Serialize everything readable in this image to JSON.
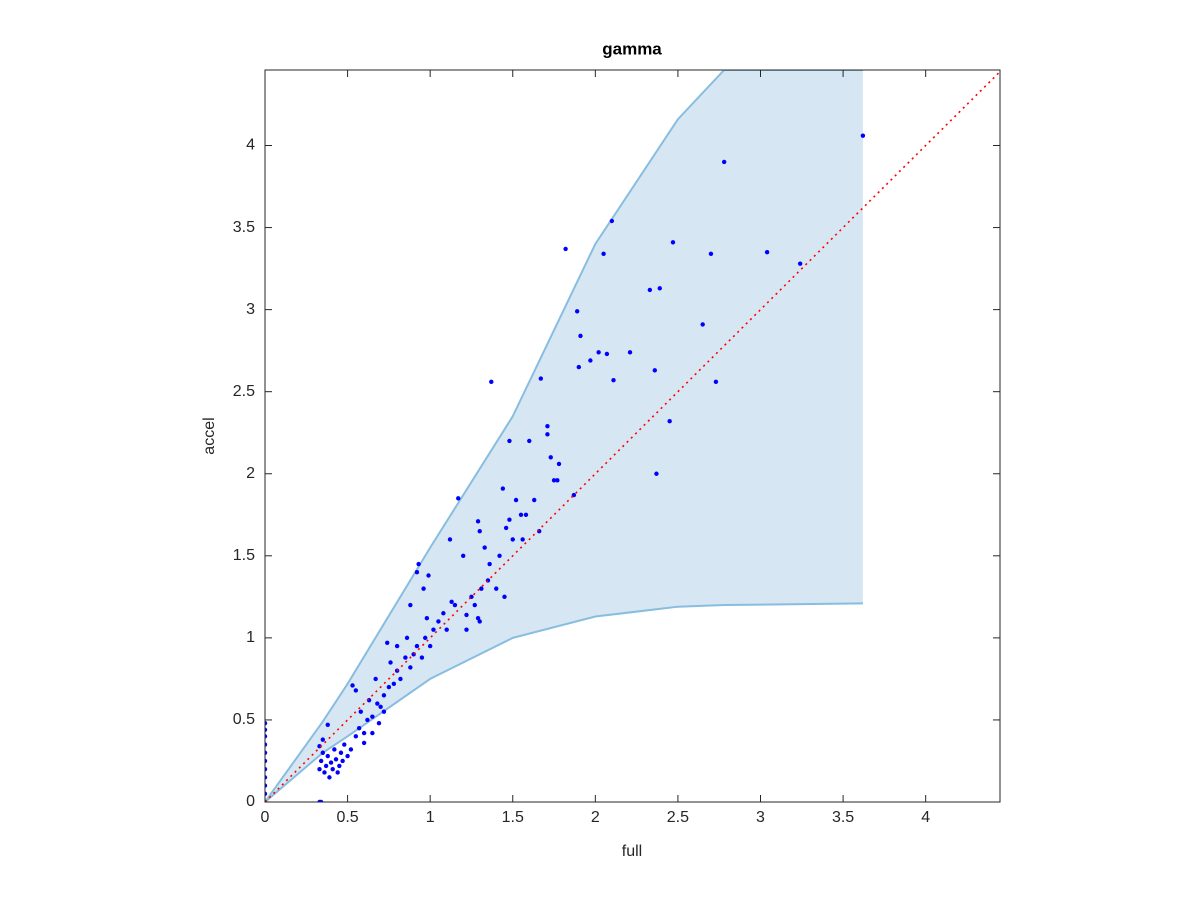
{
  "chart_data": {
    "type": "scatter",
    "title": "gamma",
    "xlabel": "full",
    "ylabel": "accel",
    "xlim": [
      0,
      4.45
    ],
    "ylim": [
      0,
      4.46
    ],
    "xticks": [
      0,
      0.5,
      1,
      1.5,
      2,
      2.5,
      3,
      3.5,
      4
    ],
    "yticks": [
      0,
      0.5,
      1,
      1.5,
      2,
      2.5,
      3,
      3.5,
      4
    ],
    "color": "#0000ff",
    "x": [
      3.62,
      2.78,
      2.1,
      1.82,
      2.05,
      2.47,
      2.7,
      3.04,
      3.24,
      2.33,
      2.39,
      1.89,
      1.91,
      2.65,
      1.97,
      2.02,
      2.07,
      2.11,
      2.21,
      1.9,
      2.36,
      2.73,
      1.37,
      1.67,
      2.45,
      1.71,
      1.71,
      1.48,
      1.6,
      1.73,
      1.75,
      1.77,
      1.78,
      2.37,
      1.17,
      1.44,
      1.52,
      1.63,
      1.55,
      1.87,
      1.29,
      1.3,
      1.48,
      1.46,
      1.58,
      1.66,
      1.56,
      1.12,
      0.93,
      0.92,
      0.99,
      1.2,
      1.36,
      1.4,
      1.31,
      1.27,
      1.29,
      1.22,
      1.13,
      1.05,
      0.33,
      0.34,
      0.35,
      0.36,
      0.37,
      0.38,
      0.39,
      0.4,
      0.41,
      0.42,
      0.43,
      0.44,
      0.45,
      0.46,
      0.47,
      0.48,
      0.5,
      0.52,
      0.33,
      0.35,
      0.38,
      0.33,
      0.34,
      0.55,
      0.57,
      0.6,
      0.62,
      0.58,
      0.65,
      0.68,
      0.7,
      0.72,
      0.63,
      0.75,
      0.78,
      0.8,
      0.82,
      0.76,
      0.85,
      0.88,
      0.9,
      0.92,
      0.95,
      0.97,
      1.0,
      1.02,
      0.98,
      0.86,
      0.8,
      0.74,
      0.67,
      0.53,
      0.55,
      0.72,
      0.69,
      0.6,
      0.65,
      1.08,
      1.1,
      1.15,
      0.96,
      0.88,
      1.25,
      1.35,
      1.42,
      1.33,
      1.5,
      1.22,
      1.3,
      1.45,
      0,
      0,
      0,
      0,
      0,
      0,
      0,
      0,
      0,
      0,
      0
    ],
    "values": [
      4.06,
      3.9,
      3.54,
      3.37,
      3.34,
      3.41,
      3.34,
      3.35,
      3.28,
      3.12,
      3.13,
      2.99,
      2.84,
      2.91,
      2.69,
      2.74,
      2.73,
      2.57,
      2.74,
      2.65,
      2.63,
      2.56,
      2.56,
      2.58,
      2.32,
      2.29,
      2.24,
      2.2,
      2.2,
      2.1,
      1.96,
      1.96,
      2.06,
      2.0,
      1.85,
      1.91,
      1.84,
      1.84,
      1.75,
      1.87,
      1.71,
      1.65,
      1.72,
      1.67,
      1.75,
      1.65,
      1.6,
      1.6,
      1.45,
      1.4,
      1.38,
      1.5,
      1.45,
      1.3,
      1.3,
      1.2,
      1.12,
      1.14,
      1.22,
      1.1,
      0.2,
      0.25,
      0.3,
      0.18,
      0.22,
      0.28,
      0.15,
      0.24,
      0.2,
      0.32,
      0.26,
      0.18,
      0.22,
      0.3,
      0.25,
      0.35,
      0.28,
      0.32,
      0.34,
      0.38,
      0.47,
      0.0,
      0.0,
      0.4,
      0.45,
      0.42,
      0.5,
      0.55,
      0.52,
      0.6,
      0.58,
      0.65,
      0.62,
      0.7,
      0.72,
      0.8,
      0.75,
      0.85,
      0.88,
      0.82,
      0.9,
      0.95,
      0.88,
      1.0,
      0.95,
      1.05,
      1.12,
      1.0,
      0.95,
      0.97,
      0.75,
      0.71,
      0.68,
      0.55,
      0.48,
      0.36,
      0.42,
      1.15,
      1.05,
      1.2,
      1.3,
      1.2,
      1.25,
      1.35,
      1.5,
      1.55,
      1.6,
      1.05,
      1.1,
      1.25,
      0.05,
      0.1,
      0.15,
      0.2,
      0.25,
      0.3,
      0.35,
      0.4,
      0.44,
      0.48,
      0
    ],
    "band": {
      "color": "#d6e7f3",
      "edge": "#88bde0",
      "x": [
        0,
        0.35,
        0.5,
        1,
        1.5,
        2,
        2.5,
        2.78,
        3.62
      ],
      "upper": [
        0,
        0.49,
        0.72,
        1.55,
        2.35,
        3.4,
        4.16,
        4.46,
        4.46
      ],
      "lower": [
        0,
        0.3,
        0.4,
        0.75,
        1.0,
        1.13,
        1.19,
        1.2,
        1.21
      ]
    },
    "reference": {
      "color": "#ff0000",
      "x": [
        0,
        4.45
      ],
      "values": [
        0,
        4.45
      ]
    }
  }
}
